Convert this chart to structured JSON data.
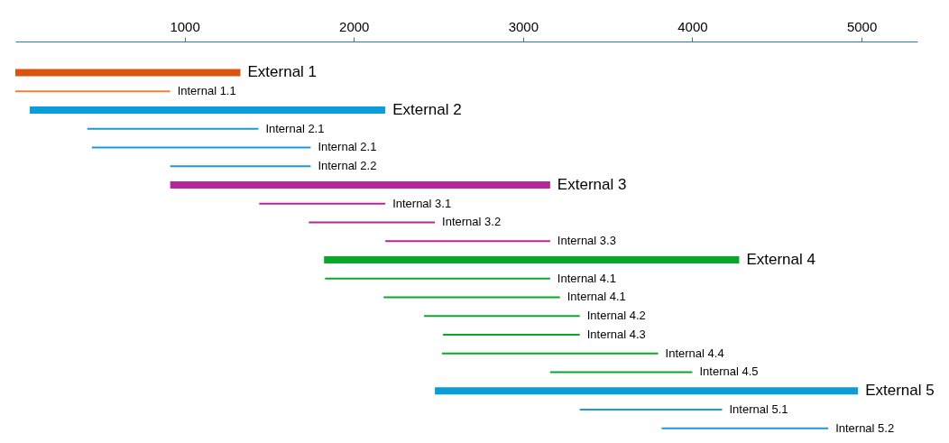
{
  "chart_data": {
    "type": "bar",
    "orientation": "horizontal",
    "categories": [
      "External 1",
      "Internal 1.1",
      "External 2",
      "Internal 2.1",
      "Internal 2.1",
      "Internal 2.2",
      "External 3",
      "Internal 3.1",
      "Internal 3.2",
      "Internal 3.3",
      "External 4",
      "Internal 4.1",
      "Internal 4.1",
      "Internal 4.2",
      "Internal 4.3",
      "Internal 4.4",
      "Internal 4.5",
      "External 5",
      "Internal 5.1",
      "Internal 5.2"
    ],
    "series": [
      {
        "base": [
          0,
          null,
          85,
          null,
          null,
          null,
          915,
          null,
          null,
          null,
          1824,
          null,
          null,
          null,
          null,
          null,
          null,
          2479,
          null,
          null
        ],
        "values": [
          1330,
          null,
          2101,
          null,
          null,
          null,
          2245,
          null,
          null,
          null,
          2453,
          null,
          null,
          null,
          null,
          null,
          null,
          2500,
          null,
          null
        ],
        "colors": [
          "#d9540f",
          null,
          "#0a9dd9",
          null,
          null,
          null,
          "#b3279a",
          null,
          null,
          null,
          "#0aa82a",
          null,
          null,
          null,
          null,
          null,
          null,
          "#0a9dd9",
          null,
          null
        ]
      },
      {
        "base": [
          null,
          0,
          null,
          425,
          452,
          915,
          null,
          1441,
          1734,
          2186,
          null,
          1830,
          2176,
          2415,
          2527,
          2521,
          3160,
          null,
          3335,
          3819
        ],
        "values": [
          null,
          915,
          null,
          1011,
          1293,
          830,
          null,
          745,
          745,
          974,
          null,
          1330,
          1042,
          920,
          808,
          1277,
          840,
          null,
          841,
          984
        ],
        "colors": [
          null,
          "#f0803c",
          null,
          "#1a9ad6",
          "#1a9ad6",
          "#1a9ad6",
          null,
          "#b3279a",
          "#b3279a",
          "#b3279a",
          null,
          "#0aa82a",
          "#0aa82a",
          "#0aa82a",
          "#0aa82a",
          "#0aa82a",
          "#0aa82a",
          null,
          "#1a9ad6",
          "#1a9ad6"
        ]
      }
    ],
    "xlim": [
      0,
      5330
    ],
    "xticks": [
      1000,
      2000,
      3000,
      4000,
      5000
    ],
    "grid": false
  }
}
